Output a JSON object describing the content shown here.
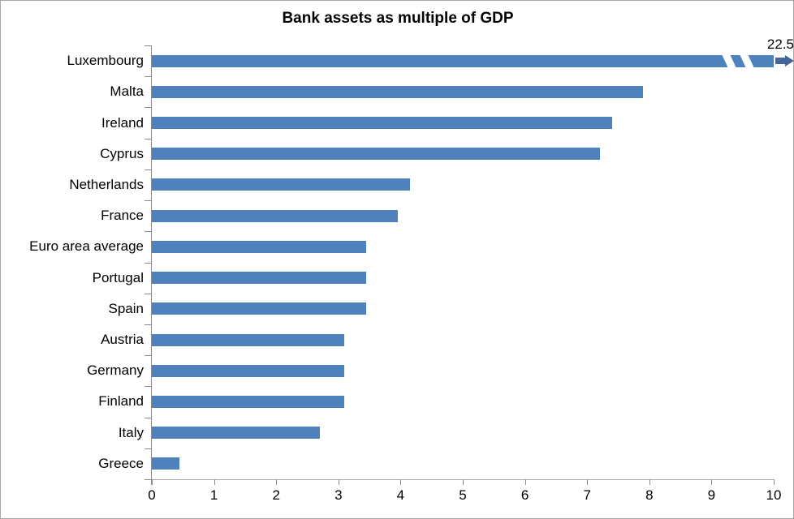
{
  "window": {
    "background": "#ffffff",
    "border_color": "#a6a6a6"
  },
  "chart_data": {
    "type": "bar",
    "orientation": "horizontal",
    "title": "Bank assets as multiple of GDP",
    "categories": [
      "Luxembourg",
      "Malta",
      "Ireland",
      "Cyprus",
      "Netherlands",
      "France",
      "Euro area average",
      "Portugal",
      "Spain",
      "Austria",
      "Germany",
      "Finland",
      "Italy",
      "Greece"
    ],
    "values": [
      22.5,
      7.9,
      7.4,
      7.2,
      4.15,
      3.95,
      3.45,
      3.45,
      3.45,
      3.1,
      3.1,
      3.1,
      2.7,
      0.45
    ],
    "xlim": [
      0,
      10
    ],
    "x_ticks": [
      "0",
      "1",
      "2",
      "3",
      "4",
      "5",
      "6",
      "7",
      "8",
      "9",
      "10"
    ],
    "broken_bar": {
      "category": "Luxembourg",
      "true_value": 22.5,
      "label": "22.5"
    },
    "bar_color": "#4F81BD",
    "arrow_color": "#44679B",
    "axis_line_color": "#8C8C8C",
    "x_axis_line_color": "#ABABAB",
    "text_color": "#000000",
    "grid": false,
    "legend": null
  }
}
